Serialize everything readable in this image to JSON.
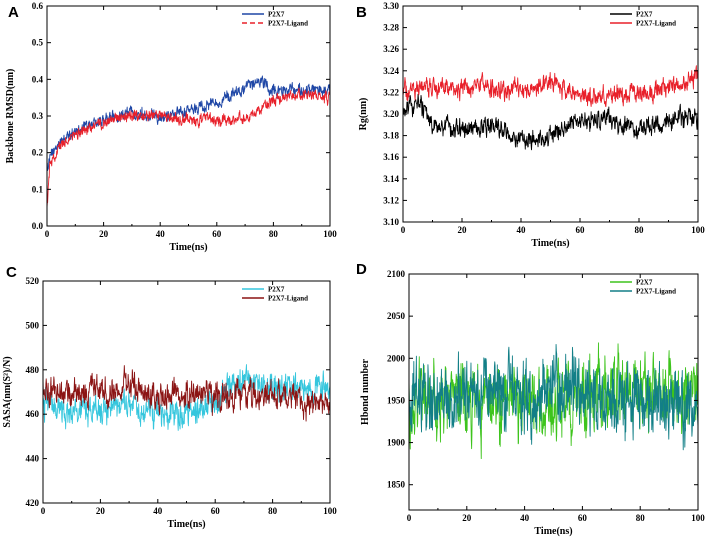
{
  "figure": {
    "panels": [
      "A",
      "B",
      "C",
      "D"
    ]
  },
  "chart_data": [
    {
      "panel": "A",
      "type": "line",
      "xlabel": "Time(ns)",
      "ylabel": "Backbone RMSD(nm)",
      "xlim": [
        0,
        100
      ],
      "ylim": [
        0.0,
        0.6
      ],
      "xticks": [
        "0",
        "20",
        "40",
        "60",
        "80",
        "100"
      ],
      "yticks": [
        "0.0",
        "0.1",
        "0.2",
        "0.3",
        "0.4",
        "0.5",
        "0.6"
      ],
      "legend_position": "top-right",
      "series": [
        {
          "name": "P2X7",
          "color": "#1f47a6",
          "style": "solid",
          "anchors": [
            [
              0,
              0.16
            ],
            [
              2,
              0.2
            ],
            [
              5,
              0.23
            ],
            [
              10,
              0.26
            ],
            [
              20,
              0.29
            ],
            [
              30,
              0.31
            ],
            [
              40,
              0.3
            ],
            [
              50,
              0.31
            ],
            [
              60,
              0.34
            ],
            [
              70,
              0.37
            ],
            [
              75,
              0.4
            ],
            [
              80,
              0.37
            ],
            [
              90,
              0.37
            ],
            [
              100,
              0.37
            ]
          ],
          "noise": 0.013
        },
        {
          "name": "P2X7-Ligand",
          "color": "#e8202a",
          "style": "dashed",
          "anchors": [
            [
              0,
              0.05
            ],
            [
              1,
              0.17
            ],
            [
              5,
              0.22
            ],
            [
              10,
              0.25
            ],
            [
              20,
              0.28
            ],
            [
              30,
              0.3
            ],
            [
              40,
              0.3
            ],
            [
              50,
              0.29
            ],
            [
              60,
              0.29
            ],
            [
              70,
              0.29
            ],
            [
              80,
              0.34
            ],
            [
              90,
              0.36
            ],
            [
              100,
              0.35
            ]
          ],
          "noise": 0.012
        }
      ]
    },
    {
      "panel": "B",
      "type": "line",
      "xlabel": "Time(ns)",
      "ylabel": "Rg(nm)",
      "xlim": [
        0,
        100
      ],
      "ylim": [
        3.1,
        3.3
      ],
      "xticks": [
        "0",
        "20",
        "40",
        "60",
        "80",
        "100"
      ],
      "yticks": [
        "3.10",
        "3.12",
        "3.14",
        "3.16",
        "3.18",
        "3.20",
        "3.22",
        "3.24",
        "3.26",
        "3.28",
        "3.30"
      ],
      "legend_position": "top-right",
      "series": [
        {
          "name": "P2X7",
          "color": "#000000",
          "style": "solid",
          "anchors": [
            [
              0,
              3.2
            ],
            [
              5,
              3.21
            ],
            [
              10,
              3.19
            ],
            [
              20,
              3.185
            ],
            [
              30,
              3.19
            ],
            [
              40,
              3.175
            ],
            [
              50,
              3.18
            ],
            [
              60,
              3.195
            ],
            [
              70,
              3.195
            ],
            [
              80,
              3.185
            ],
            [
              90,
              3.195
            ],
            [
              100,
              3.195
            ]
          ],
          "noise": 0.007
        },
        {
          "name": "P2X7-Ligand",
          "color": "#e8202a",
          "style": "solid",
          "anchors": [
            [
              0,
              3.22
            ],
            [
              10,
              3.225
            ],
            [
              20,
              3.225
            ],
            [
              30,
              3.225
            ],
            [
              40,
              3.22
            ],
            [
              50,
              3.23
            ],
            [
              60,
              3.215
            ],
            [
              70,
              3.215
            ],
            [
              80,
              3.22
            ],
            [
              90,
              3.225
            ],
            [
              100,
              3.235
            ]
          ],
          "noise": 0.007
        }
      ]
    },
    {
      "panel": "C",
      "type": "line",
      "xlabel": "Time(ns)",
      "ylabel": "SASA(nm(S²)/N)",
      "xlim": [
        0,
        100
      ],
      "ylim": [
        420,
        520
      ],
      "xticks": [
        "0",
        "20",
        "40",
        "60",
        "80",
        "100"
      ],
      "yticks": [
        "420",
        "440",
        "460",
        "480",
        "500",
        "520"
      ],
      "legend_position": "top-right",
      "series": [
        {
          "name": "P2X7",
          "color": "#35c6dd",
          "style": "solid",
          "anchors": [
            [
              0,
              465
            ],
            [
              10,
              462
            ],
            [
              20,
              462
            ],
            [
              30,
              465
            ],
            [
              40,
              458
            ],
            [
              50,
              460
            ],
            [
              60,
              465
            ],
            [
              70,
              477
            ],
            [
              80,
              470
            ],
            [
              90,
              472
            ],
            [
              100,
              472
            ]
          ],
          "noise": 5
        },
        {
          "name": "P2X7-Ligand",
          "color": "#8b1414",
          "style": "solid",
          "anchors": [
            [
              0,
              472
            ],
            [
              10,
              468
            ],
            [
              20,
              470
            ],
            [
              30,
              473
            ],
            [
              40,
              467
            ],
            [
              50,
              470
            ],
            [
              60,
              467
            ],
            [
              70,
              468
            ],
            [
              80,
              470
            ],
            [
              90,
              465
            ],
            [
              100,
              464
            ]
          ],
          "noise": 5
        }
      ]
    },
    {
      "panel": "D",
      "type": "line",
      "xlabel": "Time(ns)",
      "ylabel": "Hbond number",
      "xlim": [
        0,
        100
      ],
      "ylim": [
        1820,
        2100
      ],
      "xticks": [
        "0",
        "20",
        "40",
        "60",
        "80",
        "100"
      ],
      "yticks": [
        "1850",
        "1900",
        "1950",
        "2000",
        "2050",
        "2100"
      ],
      "legend_position": "top-right",
      "series": [
        {
          "name": "P2X7",
          "color": "#3ec41d",
          "style": "solid",
          "anchors": [
            [
              0,
              1950
            ],
            [
              20,
              1945
            ],
            [
              40,
              1950
            ],
            [
              60,
              1950
            ],
            [
              80,
              1965
            ],
            [
              100,
              1960
            ]
          ],
          "noise": 34
        },
        {
          "name": "P2X7-Ligand",
          "color": "#127f87",
          "style": "solid",
          "anchors": [
            [
              0,
              1955
            ],
            [
              20,
              1960
            ],
            [
              40,
              1960
            ],
            [
              60,
              1955
            ],
            [
              80,
              1950
            ],
            [
              100,
              1945
            ]
          ],
          "noise": 32
        }
      ]
    }
  ]
}
